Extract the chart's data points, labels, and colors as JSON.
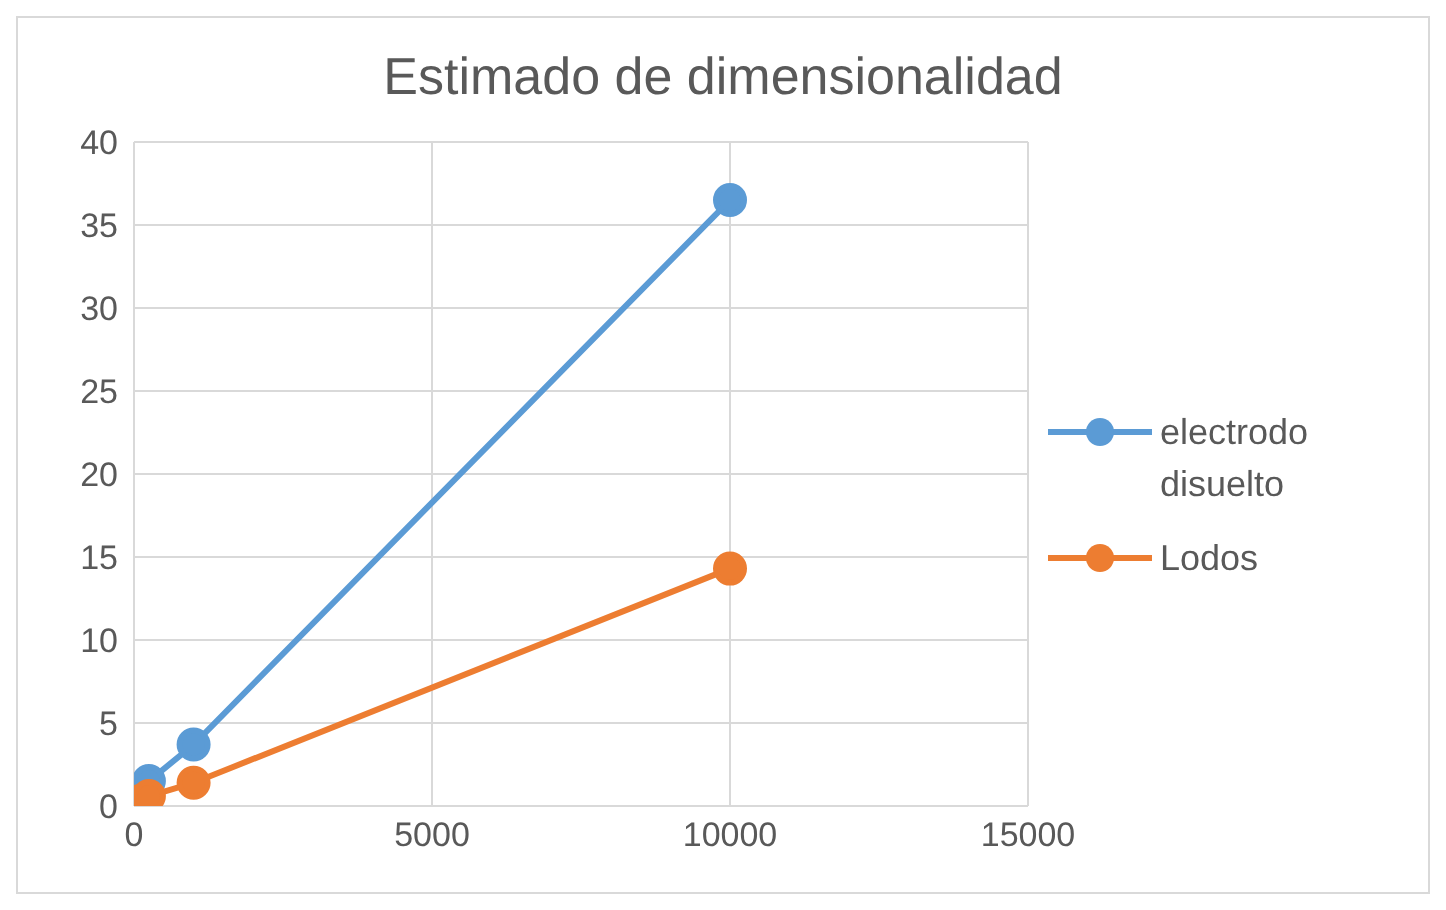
{
  "chart_data": {
    "type": "line",
    "title": "Estimado de dimensionalidad",
    "xlim": [
      0,
      15000
    ],
    "xticks": [
      0,
      5000,
      10000,
      15000
    ],
    "ylim": [
      0,
      40
    ],
    "yticks": [
      0,
      5,
      10,
      15,
      20,
      25,
      30,
      35,
      40
    ],
    "grid": true,
    "legend": "right",
    "marker": "circle",
    "line_style": "solid",
    "series": [
      {
        "name": "electrodo disuelto",
        "color": "#5b9bd5",
        "x": [
          100,
          250,
          1000,
          10000
        ],
        "values": [
          0.8,
          1.5,
          3.7,
          36.5
        ]
      },
      {
        "name": "Lodos",
        "color": "#ed7d31",
        "x": [
          100,
          250,
          1000,
          10000
        ],
        "values": [
          0.3,
          0.6,
          1.4,
          14.3
        ]
      }
    ]
  }
}
